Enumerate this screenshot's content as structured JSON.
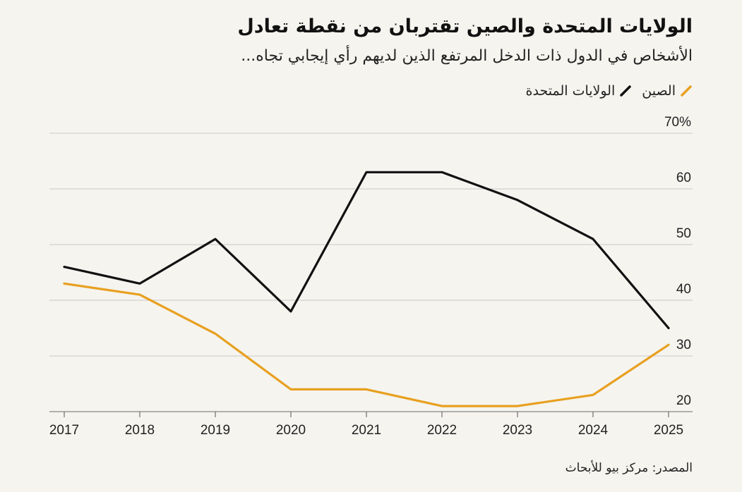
{
  "header": {
    "title": "الولايات المتحدة والصين تقتربان من نقطة تعادل",
    "subtitle": "الأشخاص في الدول ذات الدخل المرتفع الذين لديهم رأي إيجابي تجاه..."
  },
  "legend": {
    "items": [
      {
        "label": "الصين",
        "color": "#e8a020"
      },
      {
        "label": "الولايات المتحدة",
        "color": "#111111"
      }
    ]
  },
  "source": "المصدر: مركز بيو للأبحاث",
  "colors": {
    "china": "#e8a020",
    "usa": "#111111",
    "grid": "#c8c8c8",
    "background": "#f5f4ef"
  },
  "chart_data": {
    "type": "line",
    "title": "الولايات المتحدة والصين تقتربان من نقطة تعادل",
    "subtitle": "الأشخاص في الدول ذات الدخل المرتفع الذين لديهم رأي إيجابي تجاه...",
    "x": [
      "2017",
      "2018",
      "2019",
      "2020",
      "2021",
      "2022",
      "2023",
      "2024",
      "2025"
    ],
    "ylim": [
      20,
      70
    ],
    "yticks": [
      20,
      30,
      40,
      50,
      60,
      70
    ],
    "ytick_labels": [
      "20",
      "30",
      "40",
      "50",
      "60",
      "70%"
    ],
    "grid": true,
    "legend_position": "top-right",
    "series": [
      {
        "name": "الصين",
        "color": "#e8a020",
        "values": [
          43,
          41,
          34,
          24,
          24,
          21,
          21,
          23,
          32
        ]
      },
      {
        "name": "الولايات المتحدة",
        "color": "#111111",
        "values": [
          46,
          43,
          51,
          38,
          63,
          63,
          58,
          51,
          35
        ]
      }
    ]
  }
}
